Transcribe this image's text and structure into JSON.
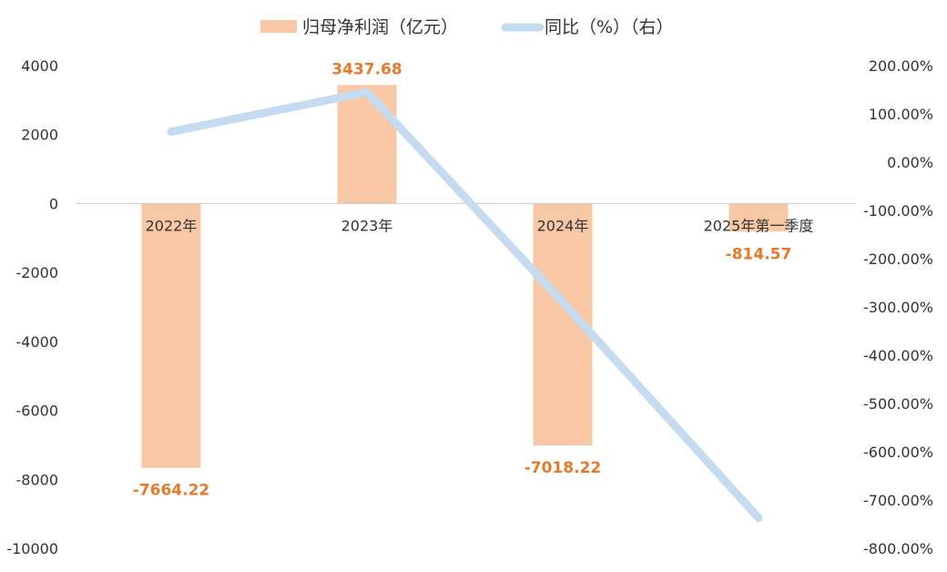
{
  "chart_data": {
    "type": "bar+line",
    "categories": [
      "2022年",
      "2023年",
      "2024年",
      "2025年第一季度"
    ],
    "series": [
      {
        "name": "归母净利润（亿元）",
        "kind": "bar",
        "axis": "left",
        "values": [
          -7664.22,
          3437.68,
          -7018.22,
          -814.57
        ],
        "labels": [
          "-7664.22",
          "3437.68",
          "-7018.22",
          "-814.57"
        ]
      },
      {
        "name": "同比（%）（右）",
        "kind": "line",
        "axis": "right",
        "values": [
          63,
          145,
          -290,
          -737
        ]
      }
    ],
    "y_left": {
      "ylim": [
        -10000,
        4000
      ],
      "ticks": [
        "4000",
        "2000",
        "0",
        "-2000",
        "-4000",
        "-6000",
        "-8000",
        "-10000"
      ],
      "tick_values": [
        4000,
        2000,
        0,
        -2000,
        -4000,
        -6000,
        -8000,
        -10000
      ]
    },
    "y_right": {
      "ylim": [
        -800,
        200
      ],
      "ticks": [
        "200.00%",
        "100.00%",
        "0.00%",
        "-100.00%",
        "-200.00%",
        "-300.00%",
        "-400.00%",
        "-500.00%",
        "-600.00%",
        "-700.00%",
        "-800.00%"
      ],
      "tick_values": [
        200,
        100,
        0,
        -100,
        -200,
        -300,
        -400,
        -500,
        -600,
        -700,
        -800
      ]
    },
    "legend_position": "top",
    "grid": false,
    "colors": {
      "bar": "#f8c7a5",
      "line": "#c5dcf0",
      "data_label": "#e8782a",
      "axis_text": "#333333",
      "axis_line": "#d0d0d0"
    }
  }
}
